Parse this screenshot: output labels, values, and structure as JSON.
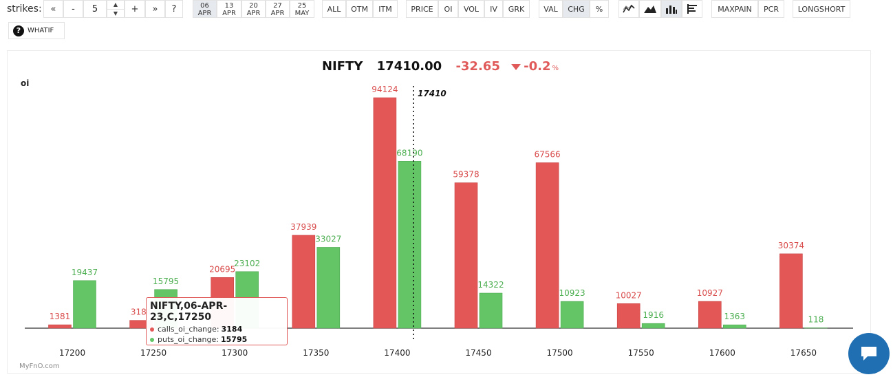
{
  "toolbar": {
    "strikes_label": "strikes:",
    "stepper": {
      "first": "«",
      "minus": "-",
      "value": "5",
      "plus": "+",
      "last": "»",
      "help": "?"
    },
    "expiries": [
      {
        "day": "06",
        "month": "APR",
        "active": true
      },
      {
        "day": "13",
        "month": "APR",
        "active": false
      },
      {
        "day": "20",
        "month": "APR",
        "active": false
      },
      {
        "day": "27",
        "month": "APR",
        "active": false
      },
      {
        "day": "25",
        "month": "MAY",
        "active": false
      }
    ],
    "filters": [
      "ALL",
      "OTM",
      "ITM"
    ],
    "metrics": [
      "PRICE",
      "OI",
      "VOL",
      "IV",
      "GRK"
    ],
    "modes": [
      "VAL",
      "CHG",
      "%"
    ],
    "active_mode": "CHG",
    "chart_type_icons": [
      "line-chart-icon",
      "area-chart-icon",
      "bar-chart-icon",
      "horizontal-bar-icon"
    ],
    "extras": [
      "MAXPAIN",
      "PCR"
    ],
    "longshort": "LONGSHORT",
    "whatif": "WHATIF"
  },
  "header": {
    "symbol": "NIFTY",
    "price": "17410.00",
    "change": "-32.65",
    "change_pct": "-0.2",
    "pct_sign": "%"
  },
  "tooltip": {
    "title": "NIFTY,06-APR-23,C,17250",
    "calls_label": "calls_oi_change:",
    "calls_value": "3184",
    "puts_label": "puts_oi_change:",
    "puts_value": "15795"
  },
  "credit": "MyFnO.com",
  "colors": {
    "calls": "#e45757",
    "puts": "#63c566",
    "spot_line": "#111111"
  },
  "chart_data": {
    "type": "bar",
    "ylabel": "oi",
    "categories": [
      "17200",
      "17250",
      "17300",
      "17350",
      "17400",
      "17450",
      "17500",
      "17550",
      "17600",
      "17650"
    ],
    "series": [
      {
        "name": "calls_oi_change",
        "values": [
          1381,
          3184,
          20695,
          37939,
          94124,
          59378,
          67566,
          10027,
          10927,
          30374
        ]
      },
      {
        "name": "puts_oi_change",
        "values": [
          19437,
          15795,
          23102,
          33027,
          68190,
          14322,
          10923,
          1916,
          1363,
          118
        ]
      }
    ],
    "spot": {
      "value": 17410,
      "label": "17410"
    },
    "ylim": [
      0,
      94124
    ],
    "grid": false
  }
}
